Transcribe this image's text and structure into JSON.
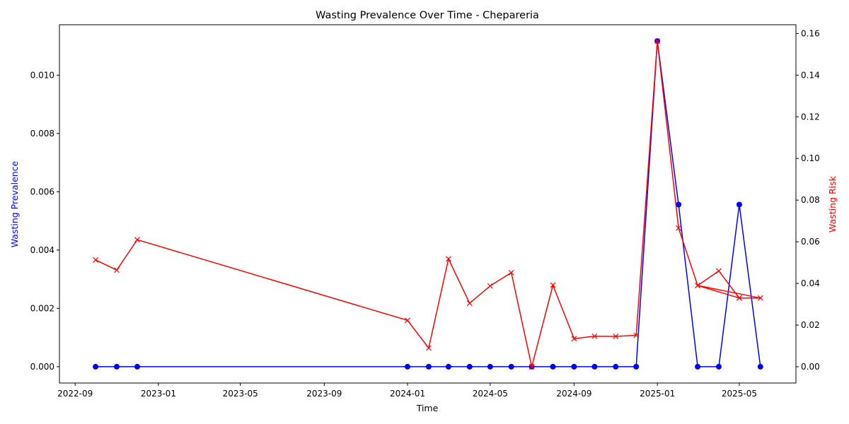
{
  "chart_data": {
    "type": "line",
    "title": "Wasting Prevalence Over Time - Chepareria",
    "xlabel": "Time",
    "ylabel_left": "Wasting Prevalence",
    "ylabel_right": "Wasting Risk",
    "colors": {
      "left": "#0000ff",
      "right": "#ff0000"
    },
    "x_ticks": [
      "2022-09",
      "2023-01",
      "2023-05",
      "2023-09",
      "2024-01",
      "2024-05",
      "2024-09",
      "2025-01",
      "2025-05"
    ],
    "y_left_ticks": [
      "0.000",
      "0.002",
      "0.004",
      "0.006",
      "0.008",
      "0.010"
    ],
    "y_right_ticks": [
      "0.00",
      "0.02",
      "0.04",
      "0.06",
      "0.08",
      "0.10",
      "0.12",
      "0.14",
      "0.16"
    ],
    "xlim": [
      "2022-08-09",
      "2025-07-23"
    ],
    "ylim_left": [
      -0.00056,
      0.01173
    ],
    "ylim_right": [
      -0.0078,
      0.1642
    ],
    "grid": false,
    "series": [
      {
        "axis": "left",
        "marker": "circle",
        "x": [
          "2022-10-01",
          "2022-11-01",
          "2022-12-01",
          "2024-01-01",
          "2024-02-01",
          "2024-03-01",
          "2024-04-01",
          "2024-05-01",
          "2024-06-01",
          "2024-07-01",
          "2024-08-01",
          "2024-09-01",
          "2024-10-01",
          "2024-11-01",
          "2024-12-01",
          "2025-01-01",
          "2025-02-01",
          "2025-03-01",
          "2025-04-01",
          "2025-05-01",
          "2025-06-01"
        ],
        "y": [
          0,
          0,
          0,
          0,
          0,
          0,
          0,
          0,
          0,
          0,
          0,
          0,
          0,
          0,
          0,
          0.01117,
          0.00556,
          0,
          0,
          0.00556,
          0
        ]
      },
      {
        "axis": "right",
        "marker": "x",
        "x": [
          "2022-10-01",
          "2022-11-01",
          "2022-12-01",
          "2024-01-01",
          "2024-02-01",
          "2024-03-01",
          "2024-04-01",
          "2024-05-01",
          "2024-06-01",
          "2024-07-01",
          "2024-08-01",
          "2024-09-01",
          "2024-10-01",
          "2024-11-01",
          "2024-12-01",
          "2025-01-01",
          "2025-02-01",
          "2025-03-01",
          "2025-04-01",
          "2025-05-01",
          "2025-06-01",
          "2025-03-01",
          "2025-05-01"
        ],
        "y": [
          0.0513,
          0.0464,
          0.061,
          0.0223,
          0.009,
          0.0518,
          0.0305,
          0.0388,
          0.0452,
          0.0,
          0.0392,
          0.0135,
          0.0147,
          0.0146,
          0.0151,
          0.1563,
          0.0666,
          0.039,
          0.046,
          0.033,
          0.033,
          0.039,
          0.033
        ]
      }
    ]
  }
}
